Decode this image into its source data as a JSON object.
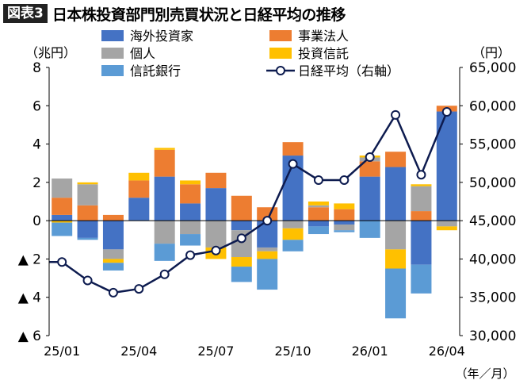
{
  "header": {
    "figure_label": "図表3",
    "title": "日本株投資部門別売買状況と日経平均の推移"
  },
  "chart_data": {
    "type": "bar",
    "stacked": true,
    "left_axis_unit": "（兆円）",
    "right_axis_unit": "（円）",
    "x_axis_unit": "（年／月）",
    "left_ylim": [
      -6,
      8
    ],
    "right_ylim": [
      30000,
      65000
    ],
    "left_ticks": [
      8,
      6,
      4,
      2,
      0,
      -2,
      -4,
      -6
    ],
    "left_tick_labels": [
      "8",
      "6",
      "4",
      "2",
      "0",
      "▲ 2",
      "▲ 4",
      "▲ 6"
    ],
    "right_tick_labels": [
      "65,000",
      "60,000",
      "55,000",
      "50,000",
      "45,000",
      "40,000",
      "35,000",
      "30,000"
    ],
    "right_ticks": [
      65000,
      60000,
      55000,
      50000,
      45000,
      40000,
      35000,
      30000
    ],
    "months": [
      "25/01",
      "25/02",
      "25/03",
      "25/04",
      "25/05",
      "25/06",
      "25/07",
      "25/08",
      "25/09",
      "25/10",
      "25/11",
      "25/12",
      "26/01",
      "26/02",
      "26/03",
      "26/04"
    ],
    "x_tick_labels": [
      {
        "index": 0,
        "label": "25/01"
      },
      {
        "index": 3,
        "label": "25/04"
      },
      {
        "index": 6,
        "label": "25/07"
      },
      {
        "index": 9,
        "label": "25/10"
      },
      {
        "index": 12,
        "label": "26/01"
      },
      {
        "index": 15,
        "label": "26/04"
      }
    ],
    "series": [
      {
        "name": "海外投資家",
        "color": "#4472C4",
        "values": [
          0.3,
          -0.9,
          -1.5,
          1.2,
          2.3,
          0.9,
          1.7,
          -0.5,
          -1.4,
          3.4,
          -0.3,
          -0.2,
          2.3,
          2.8,
          -2.3,
          5.7
        ]
      },
      {
        "name": "事業法人",
        "color": "#ED7D31",
        "values": [
          0.9,
          0.8,
          0.3,
          0.9,
          1.4,
          1.0,
          0.8,
          1.3,
          0.7,
          0.7,
          0.7,
          0.6,
          0.8,
          0.8,
          0.5,
          0.3
        ]
      },
      {
        "name": "個人",
        "color": "#A5A5A5",
        "values": [
          1.0,
          1.1,
          -0.5,
          0.0,
          -1.2,
          -0.7,
          -1.4,
          -1.4,
          -0.2,
          -0.4,
          0.1,
          -0.3,
          0.2,
          -1.5,
          1.3,
          -0.3
        ]
      },
      {
        "name": "投資信託",
        "color": "#FFC000",
        "values": [
          -0.1,
          0.1,
          -0.2,
          0.4,
          0.1,
          0.2,
          -0.6,
          -0.5,
          -0.4,
          -0.6,
          0.2,
          0.3,
          0.1,
          -1.0,
          0.1,
          -0.2
        ]
      },
      {
        "name": "信託銀行",
        "color": "#5B9BD5",
        "values": [
          -0.7,
          -0.1,
          -0.4,
          0.0,
          -0.9,
          -0.6,
          0.0,
          -0.8,
          -1.6,
          -0.6,
          -0.4,
          -0.1,
          -0.9,
          -2.6,
          -1.5,
          0.0
        ]
      }
    ],
    "line": {
      "name": "日経平均（右軸）",
      "color": "#0D1B4F",
      "values": [
        39600,
        37200,
        35600,
        36100,
        38000,
        40500,
        41100,
        42700,
        45000,
        52400,
        50300,
        50300,
        53300,
        58800,
        51000,
        59200
      ]
    },
    "legend": {
      "placement": "top",
      "items": [
        {
          "label": "海外投資家",
          "type": "box",
          "color": "#4472C4"
        },
        {
          "label": "事業法人",
          "type": "box",
          "color": "#ED7D31"
        },
        {
          "label": "個人",
          "type": "box",
          "color": "#A5A5A5"
        },
        {
          "label": "投資信託",
          "type": "box",
          "color": "#FFC000"
        },
        {
          "label": "信託銀行",
          "type": "box",
          "color": "#5B9BD5"
        },
        {
          "label": "日経平均（右軸）",
          "type": "line",
          "color": "#0D1B4F"
        }
      ]
    }
  }
}
